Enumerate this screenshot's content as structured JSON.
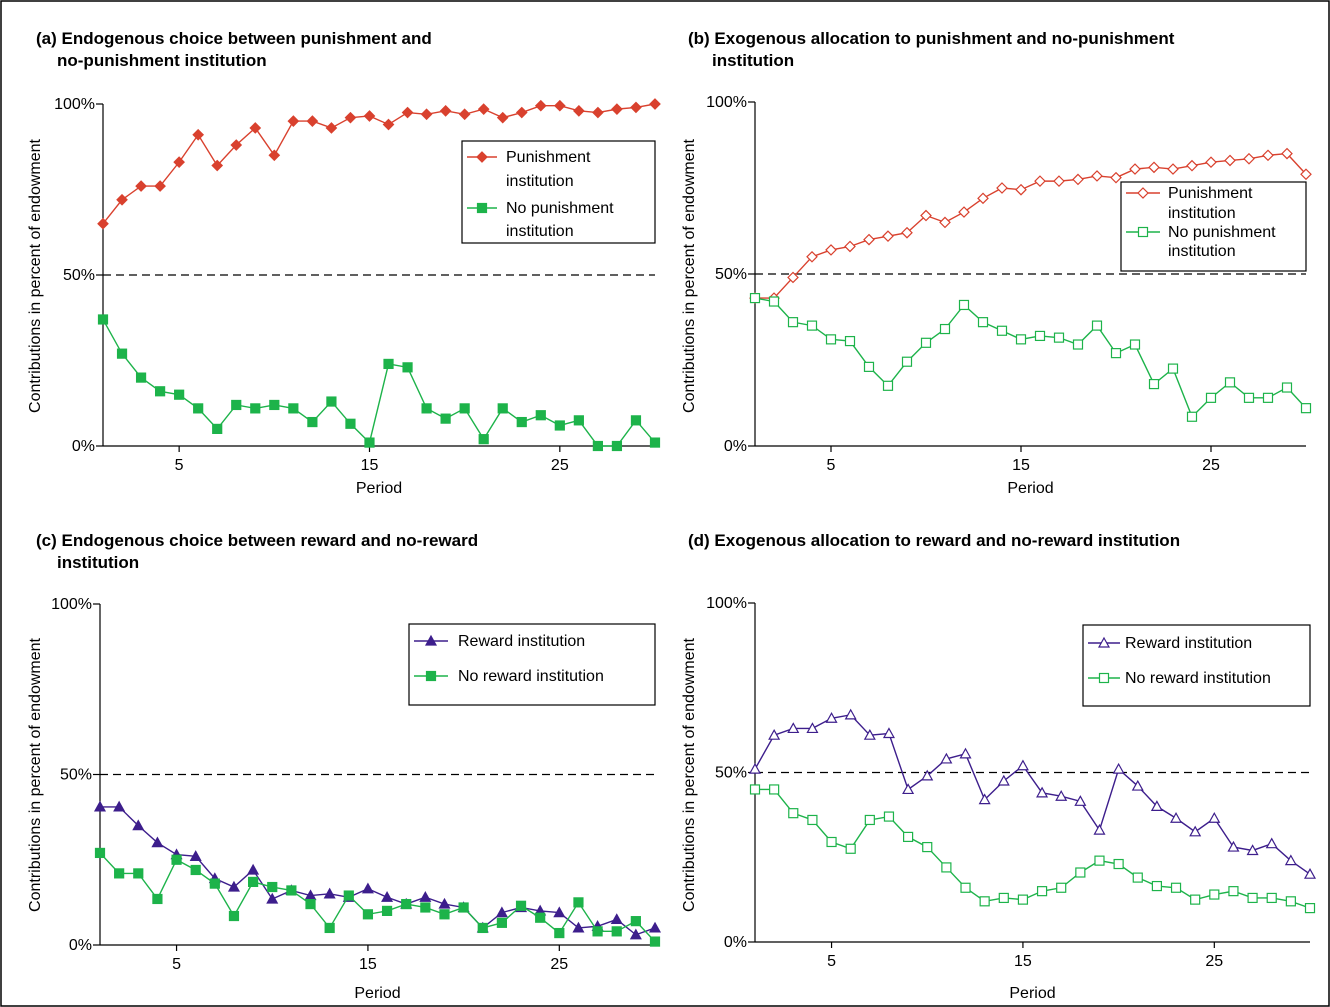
{
  "colors": {
    "punishment": "#d9412e",
    "no_institution": "#1db34a",
    "reward": "#3d1e8c",
    "reference_line": "#000000"
  },
  "chart_data": [
    {
      "type": "line",
      "title_lines": [
        "(a) Endogenous choice between punishment and",
        "no-punishment institution"
      ],
      "xlabel": "Period",
      "ylabel": "Contributions in percent of endowment",
      "xlim": [
        1,
        30
      ],
      "ylim": [
        0,
        100
      ],
      "xticks": [
        5,
        15,
        25
      ],
      "yticks": [
        0,
        50,
        100
      ],
      "ytick_labels": [
        "0%",
        "50%",
        "100%"
      ],
      "reference_line_y": 50,
      "legend_position": "top-right",
      "x": [
        1,
        2,
        3,
        4,
        5,
        6,
        7,
        8,
        9,
        10,
        11,
        12,
        13,
        14,
        15,
        16,
        17,
        18,
        19,
        20,
        21,
        22,
        23,
        24,
        25,
        26,
        27,
        28,
        29,
        30
      ],
      "series": [
        {
          "name_lines": [
            "Punishment",
            "institution"
          ],
          "color": "#d9412e",
          "marker": "diamond",
          "filled": true,
          "values": [
            65,
            72,
            76,
            76,
            83,
            91,
            82,
            88,
            93,
            85,
            95,
            95,
            93,
            96,
            96.5,
            94,
            97.5,
            97,
            98,
            97,
            98.5,
            96,
            97.5,
            99.5,
            99.5,
            98,
            97.5,
            98.5,
            99,
            100
          ]
        },
        {
          "name_lines": [
            "No punishment",
            "institution"
          ],
          "color": "#1db34a",
          "marker": "square",
          "filled": true,
          "values": [
            37,
            27,
            20,
            16,
            15,
            11,
            5,
            12,
            11,
            12,
            11,
            7,
            13,
            6.5,
            1,
            24,
            23,
            11,
            8,
            11,
            2,
            11,
            7,
            9,
            6,
            7.5,
            0,
            0,
            7.5,
            1
          ]
        }
      ]
    },
    {
      "type": "line",
      "title_lines": [
        "(b) Exogenous allocation to punishment and no-punishment",
        "institution"
      ],
      "xlabel": "Period",
      "ylabel": "Contributions in percent of endowment",
      "xlim": [
        1,
        30
      ],
      "ylim": [
        0,
        100
      ],
      "xticks": [
        5,
        15,
        25
      ],
      "yticks": [
        0,
        50,
        100
      ],
      "ytick_labels": [
        "0%",
        "50%",
        "100%"
      ],
      "reference_line_y": 50,
      "legend_position": "right",
      "x": [
        1,
        2,
        3,
        4,
        5,
        6,
        7,
        8,
        9,
        10,
        11,
        12,
        13,
        14,
        15,
        16,
        17,
        18,
        19,
        20,
        21,
        22,
        23,
        24,
        25,
        26,
        27,
        28,
        29,
        30
      ],
      "series": [
        {
          "name_lines": [
            "Punishment",
            "institution"
          ],
          "color": "#d9412e",
          "marker": "diamond",
          "filled": false,
          "values": [
            43,
            43,
            49,
            55,
            57,
            58,
            60,
            61,
            62,
            67,
            65,
            68,
            72,
            75,
            74.5,
            77,
            77,
            77.5,
            78.5,
            78,
            80.5,
            81,
            80.5,
            81.5,
            82.5,
            83,
            83.5,
            84.5,
            85,
            79
          ]
        },
        {
          "name_lines": [
            "No punishment",
            "institution"
          ],
          "color": "#1db34a",
          "marker": "square",
          "filled": false,
          "values": [
            43,
            42,
            36,
            35,
            31,
            30.5,
            23,
            17.5,
            24.5,
            30,
            34,
            41,
            36,
            33.5,
            31,
            32,
            31.5,
            29.5,
            35,
            27,
            29.5,
            18,
            22.5,
            8.5,
            14,
            18.5,
            14,
            14,
            17,
            11
          ]
        }
      ]
    },
    {
      "type": "line",
      "title_lines": [
        "(c) Endogenous choice between reward and no-reward",
        "institution"
      ],
      "xlabel": "Period",
      "ylabel": "Contributions in percent of endowment",
      "xlim": [
        1,
        30
      ],
      "ylim": [
        0,
        100
      ],
      "xticks": [
        5,
        15,
        25
      ],
      "yticks": [
        0,
        50,
        100
      ],
      "ytick_labels": [
        "0%",
        "50%",
        "100%"
      ],
      "reference_line_y": 50,
      "legend_position": "top-right",
      "x": [
        1,
        2,
        3,
        4,
        5,
        6,
        7,
        8,
        9,
        10,
        11,
        12,
        13,
        14,
        15,
        16,
        17,
        18,
        19,
        20,
        21,
        22,
        23,
        24,
        25,
        26,
        27,
        28,
        29,
        30
      ],
      "series": [
        {
          "name_lines": [
            "Reward institution"
          ],
          "color": "#3d1e8c",
          "marker": "triangle",
          "filled": true,
          "values": [
            40.5,
            40.5,
            35,
            30,
            26.5,
            26,
            19.5,
            17,
            22,
            13.5,
            16,
            14.5,
            15,
            14,
            16.5,
            14,
            12,
            14,
            12,
            11,
            5,
            9.5,
            11,
            10,
            9.5,
            5,
            5.5,
            7.5,
            3,
            5
          ]
        },
        {
          "name_lines": [
            "No reward institution"
          ],
          "color": "#1db34a",
          "marker": "square",
          "filled": true,
          "values": [
            27,
            21,
            21,
            13.5,
            25,
            22,
            18,
            8.5,
            18.5,
            17,
            16,
            12,
            5,
            14.5,
            9,
            10,
            12,
            11,
            9,
            11,
            5,
            6.5,
            11.5,
            8,
            3.5,
            12.5,
            4,
            4,
            7,
            1
          ]
        }
      ]
    },
    {
      "type": "line",
      "title_lines": [
        "(d) Exogenous allocation to reward and no-reward institution"
      ],
      "xlabel": "Period",
      "ylabel": "Contributions in percent of endowment",
      "xlim": [
        1,
        30
      ],
      "ylim": [
        0,
        100
      ],
      "xticks": [
        5,
        15,
        25
      ],
      "yticks": [
        0,
        50,
        100
      ],
      "ytick_labels": [
        "0%",
        "50%",
        "100%"
      ],
      "reference_line_y": 50,
      "legend_position": "top-right",
      "x": [
        1,
        2,
        3,
        4,
        5,
        6,
        7,
        8,
        9,
        10,
        11,
        12,
        13,
        14,
        15,
        16,
        17,
        18,
        19,
        20,
        21,
        22,
        23,
        24,
        25,
        26,
        27,
        28,
        29,
        30
      ],
      "series": [
        {
          "name_lines": [
            "Reward institution"
          ],
          "color": "#3d1e8c",
          "marker": "triangle",
          "filled": false,
          "values": [
            51,
            61,
            63,
            63,
            66,
            67,
            61,
            61.5,
            45,
            49,
            54,
            55.5,
            42,
            47.5,
            52,
            44,
            43,
            41.5,
            33,
            51,
            46,
            40,
            36.5,
            32.5,
            36.5,
            28,
            27,
            29,
            24,
            20
          ]
        },
        {
          "name_lines": [
            "No reward institution"
          ],
          "color": "#1db34a",
          "marker": "square",
          "filled": false,
          "values": [
            45,
            45,
            38,
            36,
            29.5,
            27.5,
            36,
            37,
            31,
            28,
            22,
            16,
            12,
            13,
            12.5,
            15,
            16,
            20.5,
            24,
            23,
            19,
            16.5,
            16,
            12.5,
            14,
            15,
            13,
            13,
            12,
            10
          ]
        }
      ]
    }
  ]
}
